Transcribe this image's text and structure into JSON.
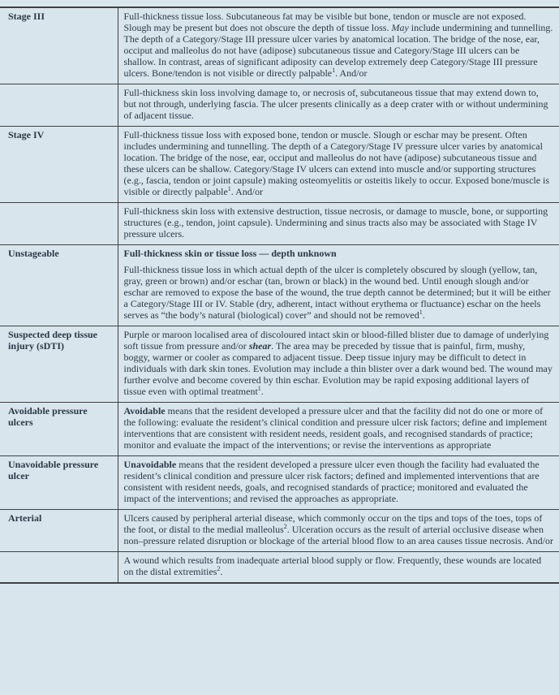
{
  "page": {
    "background_color": "#d9e5ec",
    "text_color": "#2b3845",
    "rule_color": "#3c4145",
    "description": "Glossary table of pressure ulcer categories and wound definitions"
  },
  "table": {
    "columns": [
      "term",
      "definition"
    ],
    "rows": [
      {
        "term": "Stage III",
        "paragraphs": [
          [
            {
              "t": "Full-thickness tissue loss. Subcutaneous fat may be visible but bone, tendon or muscle are not exposed. Slough may be present but does not obscure the depth of tissue loss. "
            },
            {
              "t": "May",
              "s": "i"
            },
            {
              "t": " include undermining and tunnelling. The depth of a Category/Stage III pressure ulcer varies by anatomical location. The bridge of the nose, ear, occiput and malleolus do not have (adipose) subcutaneous tissue and Category/Stage III ulcers can be shallow. In contrast, areas of significant adiposity can develop extremely deep Category/Stage III pressure ulcers. Bone/tendon is not visible or directly palpable"
            },
            {
              "t": "1",
              "s": "sup"
            },
            {
              "t": ". And/or"
            }
          ]
        ]
      },
      {
        "term": "",
        "paragraphs": [
          [
            {
              "t": "Full-thickness skin loss involving damage to, or necrosis of, subcutaneous tissue that may extend down to, but not through, underlying fascia. The ulcer presents clinically as a deep crater with or without undermining of adjacent tissue."
            }
          ]
        ]
      },
      {
        "term": "Stage IV",
        "paragraphs": [
          [
            {
              "t": "Full-thickness tissue loss with exposed bone, tendon or muscle. Slough or eschar may be present. Often includes undermining and tunnelling. The depth of a Category/Stage IV pressure ulcer varies by anatomical location. The bridge of the nose, ear, occiput and malleolus do not have (adipose) subcutaneous tissue and these ulcers can be shallow. Category/Stage IV ulcers can extend into muscle and/or supporting structures (e.g., fascia, tendon or joint capsule) making osteomyelitis or osteitis likely to occur. Exposed bone/muscle is visible or directly palpable"
            },
            {
              "t": "1",
              "s": "sup"
            },
            {
              "t": ". And/or"
            }
          ]
        ]
      },
      {
        "term": "",
        "paragraphs": [
          [
            {
              "t": "Full-thickness skin loss with extensive destruction, tissue necrosis, or damage to muscle, bone, or supporting structures (e.g., tendon, joint capsule). Undermining and sinus tracts also may be associated with Stage IV pressure ulcers."
            }
          ]
        ]
      },
      {
        "term": "Unstageable",
        "paragraphs": [
          [
            {
              "t": "Full-thickness skin or tissue loss — depth unknown",
              "s": "b"
            }
          ],
          [
            {
              "t": "Full-thickness tissue loss in which actual depth of the ulcer is completely obscured by slough (yellow, tan, gray, green or brown) and/or eschar (tan, brown or black) in the wound bed. Until enough slough and/or eschar are removed to expose the base of the wound, the true depth cannot be determined; but it will be either a Category/Stage III or IV. Stable (dry, adherent, intact without erythema or fluctuance) eschar on the heels serves as “the body’s natural (biological) cover” and should not be removed"
            },
            {
              "t": "1",
              "s": "sup"
            },
            {
              "t": "."
            }
          ]
        ]
      },
      {
        "term": "Suspected deep tissue injury (sDTI)",
        "paragraphs": [
          [
            {
              "t": "Purple or maroon localised area of discoloured intact skin or blood-filled blister due to damage of underlying soft tissue from pressure and/or "
            },
            {
              "t": "shear",
              "s": "bi"
            },
            {
              "t": ". The area may be preceded by tissue that is painful, firm, mushy, boggy, warmer or cooler as compared to adjacent tissue. Deep tissue injury may be difficult to detect in individuals with dark skin tones. Evolution may include a thin blister over a dark wound bed. The wound may further evolve and become covered by thin eschar. Evolution may be rapid exposing additional layers of tissue even with optimal treatment"
            },
            {
              "t": "1",
              "s": "sup"
            },
            {
              "t": "."
            }
          ]
        ]
      },
      {
        "term": "Avoidable pressure ulcers",
        "paragraphs": [
          [
            {
              "t": "Avoidable",
              "s": "b"
            },
            {
              "t": " means that the resident developed a pressure ulcer and that the facility did not do one or more of the following: evaluate the resident’s clinical condition and pressure ulcer risk factors; define and implement interventions that are consistent with resident needs, resident goals, and recognised standards of practice; monitor and evaluate the impact of the interventions; or revise the interventions as appropriate"
            }
          ]
        ]
      },
      {
        "term": "Unavoidable pressure ulcer",
        "paragraphs": [
          [
            {
              "t": "Unavoidable",
              "s": "b"
            },
            {
              "t": " means that the resident developed a pressure ulcer even though the facility had evaluated the resident’s clinical condition and pressure ulcer risk factors; defined and implemented interventions that are consistent with resident needs, goals, and recognised standards of practice; monitored and evaluated the impact of the interventions; and revised the approaches as appropriate."
            }
          ]
        ]
      },
      {
        "term": "Arterial",
        "paragraphs": [
          [
            {
              "t": "Ulcers caused by peripheral arterial disease, which commonly occur on the tips and tops of the toes, tops of the foot, or distal to the medial malleolus"
            },
            {
              "t": "2",
              "s": "sup"
            },
            {
              "t": ". Ulceration occurs as the result of arterial occlusive disease when non–pressure related disruption or blockage of the arterial blood flow to an area causes tissue necrosis. And/or"
            }
          ]
        ]
      },
      {
        "term": "",
        "paragraphs": [
          [
            {
              "t": "A wound which results from inadequate arterial blood supply or flow. Frequently, these wounds are located on the distal extremities"
            },
            {
              "t": "2",
              "s": "sup"
            },
            {
              "t": "."
            }
          ]
        ]
      }
    ]
  }
}
